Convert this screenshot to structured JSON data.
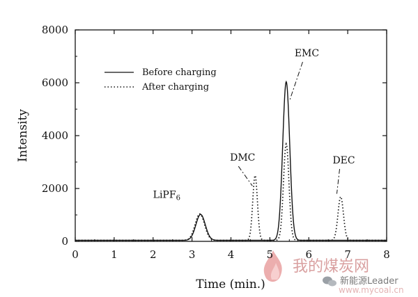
{
  "chart_data": {
    "type": "line",
    "title": "",
    "xlabel": "Time (min.)",
    "ylabel": "Intensity",
    "xlim": [
      0,
      8
    ],
    "ylim": [
      0,
      8000
    ],
    "xticks": [
      "0",
      "1",
      "2",
      "3",
      "4",
      "5",
      "6",
      "7",
      "8"
    ],
    "yticks": [
      "0",
      "2000",
      "4000",
      "6000",
      "8000"
    ],
    "grid": false,
    "legend_placement": "top-left",
    "series": [
      {
        "name": "Before charging",
        "style": "solid",
        "peaks": [
          {
            "center": 3.22,
            "height": 980,
            "width": 0.12
          },
          {
            "center": 5.42,
            "height": 6000,
            "width": 0.09
          }
        ],
        "baseline": 40
      },
      {
        "name": "After charging",
        "style": "dotted",
        "peaks": [
          {
            "center": 3.2,
            "height": 1000,
            "width": 0.12
          },
          {
            "center": 4.62,
            "height": 2450,
            "width": 0.06
          },
          {
            "center": 5.42,
            "height": 3650,
            "width": 0.07
          },
          {
            "center": 6.82,
            "height": 1650,
            "width": 0.07
          }
        ],
        "baseline": 40
      }
    ],
    "annotations": [
      {
        "text": "EMC",
        "x": 5.95,
        "y": 7000,
        "arrow_to": [
          5.5,
          5300
        ]
      },
      {
        "text": "DMC",
        "x": 4.3,
        "y": 3050,
        "arrow_to": [
          4.55,
          2100
        ]
      },
      {
        "text": "DEC",
        "x": 6.9,
        "y": 2950,
        "arrow_to": [
          6.72,
          1800
        ]
      },
      {
        "text": "LiPF6",
        "x": 2.35,
        "y": 1650
      }
    ]
  },
  "watermark": {
    "cn_text": "我的煤炭网",
    "small_text": "新能源Leader",
    "url": "www.mycoal.cn"
  },
  "colors": {
    "ink": "#111111",
    "watermark_red": "#d9a0a0"
  }
}
